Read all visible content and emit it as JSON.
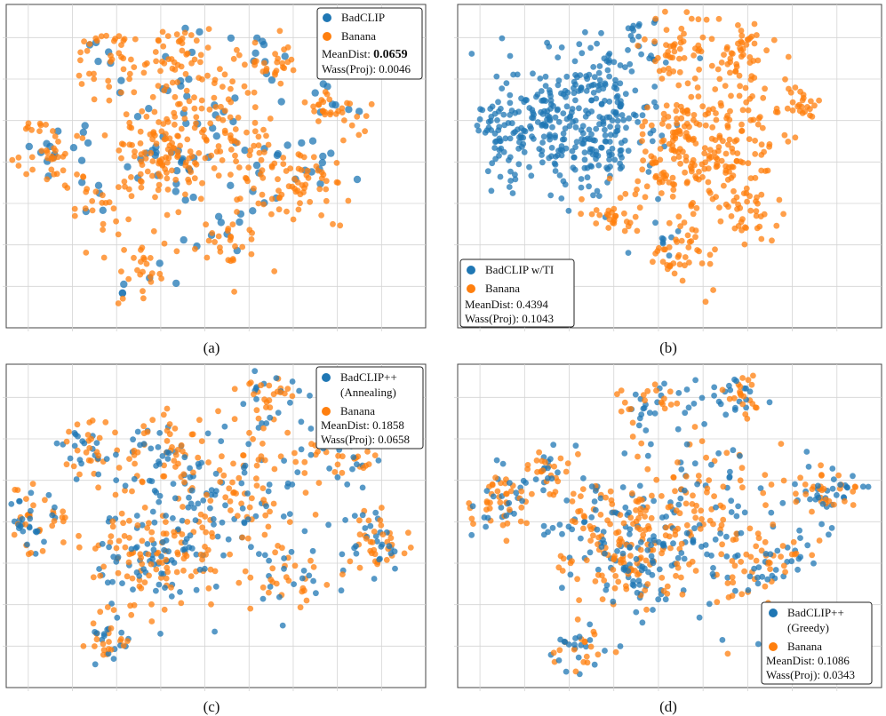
{
  "figure": {
    "colors": {
      "badclip": "#1f77b4",
      "banana": "#ff7f0e"
    }
  },
  "chart_data": [
    {
      "type": "scatter",
      "caption": "(a)",
      "legend_position": "top-right",
      "series": [
        {
          "name": "BadCLIP",
          "color": "#1f77b4"
        },
        {
          "name": "Banana",
          "color": "#ff7f0e"
        }
      ],
      "stats": [
        "MeanDist: ",
        "0.0659",
        "Wass(Proj): 0.0046"
      ],
      "x": [
        -45,
        50
      ],
      "y": [
        -40,
        38
      ],
      "clusters": [
        {
          "x": -10,
          "y": 0,
          "spread": 6,
          "n": 120
        },
        {
          "x": -36,
          "y": 3,
          "spread": 3.5,
          "n": 45
        },
        {
          "x": -22,
          "y": 24,
          "spread": 4,
          "n": 45
        },
        {
          "x": -5,
          "y": 26,
          "spread": 4,
          "n": 40
        },
        {
          "x": 14,
          "y": 25,
          "spread": 3,
          "n": 35
        },
        {
          "x": 28,
          "y": 12,
          "spread": 4,
          "n": 40
        },
        {
          "x": 22,
          "y": -5,
          "spread": 5,
          "n": 60
        },
        {
          "x": 12,
          "y": 0,
          "spread": 6,
          "n": 40
        },
        {
          "x": 4,
          "y": -18,
          "spread": 4,
          "n": 35
        },
        {
          "x": -15,
          "y": -25,
          "spread": 4,
          "n": 35
        },
        {
          "x": -25,
          "y": -8,
          "spread": 4,
          "n": 30
        },
        {
          "x": 0,
          "y": 10,
          "spread": 9,
          "n": 120
        }
      ],
      "blue_fraction": 0.2
    },
    {
      "type": "scatter",
      "caption": "(b)",
      "legend_position": "bottom-left",
      "series": [
        {
          "name": "BadCLIP w/TI",
          "color": "#1f77b4"
        },
        {
          "name": "Banana",
          "color": "#ff7f0e"
        }
      ],
      "stats": [
        "MeanDist:  0.4394",
        "Wass(Proj): 0.1043"
      ],
      "x": [
        -45,
        50
      ],
      "y": [
        -40,
        38
      ],
      "blue_clusters": [
        {
          "x": -18,
          "y": 10,
          "spread": 9,
          "n": 330
        },
        {
          "x": -34,
          "y": 8,
          "spread": 4,
          "n": 60
        },
        {
          "x": -5,
          "y": 30,
          "spread": 3,
          "n": 20
        },
        {
          "x": 2,
          "y": -18,
          "spread": 2,
          "n": 8
        }
      ],
      "orange_clusters": [
        {
          "x": 6,
          "y": 0,
          "spread": 6,
          "n": 120
        },
        {
          "x": 5,
          "y": 27,
          "spread": 4,
          "n": 50
        },
        {
          "x": 18,
          "y": 27,
          "spread": 3,
          "n": 35
        },
        {
          "x": 32,
          "y": 14,
          "spread": 2.5,
          "n": 25
        },
        {
          "x": 20,
          "y": 2,
          "spread": 4,
          "n": 40
        },
        {
          "x": 20,
          "y": -12,
          "spread": 4,
          "n": 40
        },
        {
          "x": 5,
          "y": -22,
          "spread": 4,
          "n": 45
        },
        {
          "x": -10,
          "y": -12,
          "spread": 3,
          "n": 30
        },
        {
          "x": 17,
          "y": 16,
          "spread": 5,
          "n": 50
        },
        {
          "x": 5,
          "y": 10,
          "spread": 3,
          "n": 30
        }
      ]
    },
    {
      "type": "scatter",
      "caption": "(c)",
      "legend_position": "top-right",
      "series": [
        {
          "name": "BadCLIP++",
          "name2": "(Annealing)",
          "color": "#1f77b4"
        },
        {
          "name": "Banana",
          "color": "#ff7f0e"
        }
      ],
      "stats": [
        "MeanDist:  0.1858",
        "Wass(Proj): 0.0658"
      ],
      "x": [
        -45,
        50
      ],
      "y": [
        -40,
        38
      ],
      "clusters": [
        {
          "x": -12,
          "y": -8,
          "spread": 7,
          "n": 160
        },
        {
          "x": -38,
          "y": 0,
          "spread": 4,
          "n": 60
        },
        {
          "x": -26,
          "y": 17,
          "spread": 3.5,
          "n": 45
        },
        {
          "x": -10,
          "y": 17,
          "spread": 4,
          "n": 50
        },
        {
          "x": 15,
          "y": 30,
          "spread": 3,
          "n": 40
        },
        {
          "x": 32,
          "y": 16,
          "spread": 4,
          "n": 50
        },
        {
          "x": 38,
          "y": -5,
          "spread": 4,
          "n": 60
        },
        {
          "x": 20,
          "y": -15,
          "spread": 3.5,
          "n": 30
        },
        {
          "x": -22,
          "y": -28,
          "spread": 3,
          "n": 35
        },
        {
          "x": 5,
          "y": 5,
          "spread": 10,
          "n": 200
        }
      ],
      "blue_fraction": 0.45
    },
    {
      "type": "scatter",
      "caption": "(d)",
      "legend_position": "bottom-right",
      "series": [
        {
          "name": "BadCLIP++",
          "name2": "(Greedy)",
          "color": "#1f77b4"
        },
        {
          "name": "Banana",
          "color": "#ff7f0e"
        }
      ],
      "stats": [
        "MeanDist:  0.1086",
        "Wass(Proj): 0.0343"
      ],
      "x": [
        -45,
        50
      ],
      "y": [
        -40,
        38
      ],
      "clusters": [
        {
          "x": -5,
          "y": -10,
          "spread": 7,
          "n": 150
        },
        {
          "x": -35,
          "y": 5,
          "spread": 4,
          "n": 60
        },
        {
          "x": -24,
          "y": 12,
          "spread": 3,
          "n": 35
        },
        {
          "x": 0,
          "y": 28,
          "spread": 4,
          "n": 45
        },
        {
          "x": 18,
          "y": 30,
          "spread": 3,
          "n": 40
        },
        {
          "x": 38,
          "y": 7,
          "spread": 4,
          "n": 55
        },
        {
          "x": 26,
          "y": -10,
          "spread": 4,
          "n": 50
        },
        {
          "x": -18,
          "y": -30,
          "spread": 3,
          "n": 35
        },
        {
          "x": 10,
          "y": 0,
          "spread": 10,
          "n": 200
        },
        {
          "x": -15,
          "y": 0,
          "spread": 8,
          "n": 80
        }
      ],
      "blue_fraction": 0.45
    }
  ]
}
